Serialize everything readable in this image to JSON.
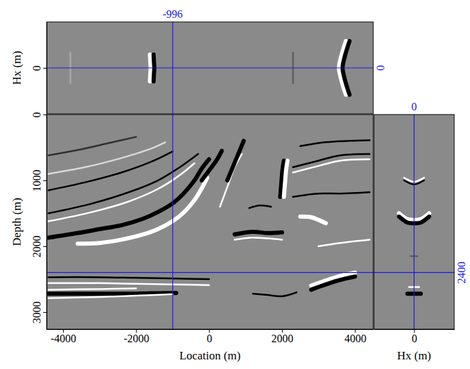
{
  "chart_data": [
    {
      "type": "line",
      "xlabel": "Location (m)",
      "ylabel": "Depth (m)",
      "xlim": [
        -4450,
        4500
      ],
      "ylim": [
        0,
        3260
      ],
      "xticks": [
        -4000,
        -2000,
        0,
        2000,
        4000
      ],
      "yticks": [
        0,
        1000,
        2000,
        3000
      ],
      "crosshair": {
        "x": -996,
        "y": 2400
      },
      "series": [
        {
          "color": "#ffffff",
          "line_style": "thick",
          "x": [
            -3600,
            -3000,
            -2400,
            -1800,
            -1400,
            -1000,
            -700,
            -400,
            -200,
            -50
          ],
          "values": [
            1960,
            1950,
            1900,
            1820,
            1740,
            1620,
            1490,
            1300,
            1120,
            960
          ]
        },
        {
          "color": "#000000",
          "line_style": "thick",
          "x": [
            -4400,
            -3600,
            -3000,
            -2400,
            -1800,
            -1400,
            -1000,
            -700,
            -400,
            -200,
            0
          ],
          "values": [
            1870,
            1800,
            1740,
            1680,
            1580,
            1480,
            1350,
            1200,
            1000,
            820,
            680
          ]
        },
        {
          "color": "#000000",
          "line_style": "thin",
          "x": [
            -4400,
            -3200,
            -2200,
            -1400,
            -800,
            -300
          ],
          "values": [
            1500,
            1350,
            1180,
            1000,
            800,
            600
          ]
        },
        {
          "color": "#ffffff",
          "line_style": "thin",
          "x": [
            -4400,
            -3200,
            -2200,
            -1400,
            -800,
            -400
          ],
          "values": [
            1620,
            1480,
            1320,
            1130,
            920,
            740
          ]
        },
        {
          "color": "#000000",
          "line_style": "thin",
          "x": [
            -4400,
            -3400,
            -2400,
            -1600,
            -1000
          ],
          "values": [
            1150,
            1030,
            880,
            720,
            560
          ]
        },
        {
          "color": "#d8d8d8",
          "line_style": "thin",
          "x": [
            -4400,
            -3400,
            -2400,
            -1600,
            -1200
          ],
          "values": [
            900,
            800,
            660,
            520,
            420
          ]
        },
        {
          "color": "#303030",
          "line_style": "thin",
          "x": [
            -4400,
            -3600,
            -2800,
            -2000
          ],
          "values": [
            620,
            540,
            440,
            340
          ]
        },
        {
          "color": "#000000",
          "line_style": "thin",
          "x": [
            -4400,
            -3000,
            -2000,
            -1000,
            0
          ],
          "values": [
            2470,
            2470,
            2480,
            2490,
            2500
          ]
        },
        {
          "color": "#ffffff",
          "line_style": "thin",
          "x": [
            -4400,
            -3000,
            -2000,
            -1000,
            0
          ],
          "values": [
            2560,
            2560,
            2570,
            2580,
            2590
          ]
        },
        {
          "color": "#000000",
          "line_style": "thick",
          "x": [
            -4400,
            -3000,
            -2000,
            -1200,
            -900
          ],
          "values": [
            2720,
            2720,
            2720,
            2710,
            2710
          ]
        },
        {
          "color": "#ffffff",
          "line_style": "thin",
          "x": [
            -4400,
            -3000,
            -2000,
            -1000
          ],
          "values": [
            2790,
            2770,
            2750,
            2730
          ]
        },
        {
          "color": "#ffffff",
          "line_style": "thin",
          "x": [
            -4400,
            -3000,
            -2000
          ],
          "values": [
            2660,
            2650,
            2640
          ]
        },
        {
          "color": "#000000",
          "line_style": "thick",
          "x": [
            -200,
            0,
            200,
            350
          ],
          "values": [
            1000,
            850,
            700,
            550
          ]
        },
        {
          "color": "#ffffff",
          "line_style": "thin",
          "x": [
            300,
            500,
            700,
            900
          ],
          "values": [
            1400,
            1100,
            800,
            600
          ]
        },
        {
          "color": "#000000",
          "line_style": "thick",
          "x": [
            500,
            650,
            800,
            950
          ],
          "values": [
            1000,
            800,
            600,
            400
          ]
        },
        {
          "color": "#000000",
          "line_style": "thick",
          "x": [
            1950,
            1980,
            2010,
            2050
          ],
          "values": [
            1250,
            1050,
            850,
            700
          ]
        },
        {
          "color": "#ffffff",
          "line_style": "thick",
          "x": [
            2050,
            2080,
            2110,
            2150
          ],
          "values": [
            1250,
            1050,
            850,
            700
          ]
        },
        {
          "color": "#000000",
          "line_style": "thick",
          "x": [
            700,
            1200,
            1600,
            2000
          ],
          "values": [
            1820,
            1780,
            1800,
            1790
          ]
        },
        {
          "color": "#ffffff",
          "line_style": "thin",
          "x": [
            700,
            1200,
            1600,
            2000
          ],
          "values": [
            1900,
            1870,
            1880,
            1900
          ]
        },
        {
          "color": "#000000",
          "line_style": "thin",
          "x": [
            1100,
            1400,
            1700
          ],
          "values": [
            1420,
            1380,
            1400
          ]
        },
        {
          "color": "#ffffff",
          "line_style": "thick",
          "x": [
            2800,
            3200,
            3600,
            4000
          ],
          "values": [
            2600,
            2520,
            2450,
            2400
          ]
        },
        {
          "color": "#000000",
          "line_style": "thick",
          "x": [
            2800,
            3200,
            3600,
            4000
          ],
          "values": [
            2660,
            2580,
            2510,
            2460
          ]
        },
        {
          "color": "#ffffff",
          "line_style": "thick",
          "x": [
            2500,
            2800,
            3000,
            3200
          ],
          "values": [
            1550,
            1560,
            1600,
            1650
          ]
        },
        {
          "color": "#000000",
          "line_style": "thin",
          "x": [
            2300,
            3000,
            3600,
            4400
          ],
          "values": [
            1250,
            1200,
            1200,
            1180
          ]
        },
        {
          "color": "#000000",
          "line_style": "thin",
          "x": [
            2300,
            3000,
            3600,
            4400
          ],
          "values": [
            800,
            700,
            620,
            600
          ]
        },
        {
          "color": "#ffffff",
          "line_style": "thin",
          "x": [
            2300,
            3000,
            3600,
            4400
          ],
          "values": [
            880,
            780,
            700,
            680
          ]
        },
        {
          "color": "#000000",
          "line_style": "thin",
          "x": [
            2500,
            3200,
            3800,
            4400
          ],
          "values": [
            480,
            420,
            400,
            390
          ]
        },
        {
          "color": "#ffffff",
          "line_style": "thin",
          "x": [
            3000,
            3600,
            4400
          ],
          "values": [
            2000,
            1950,
            1900
          ]
        },
        {
          "color": "#000000",
          "line_style": "thin",
          "x": [
            1200,
            1600,
            2000,
            2400
          ],
          "values": [
            2720,
            2740,
            2760,
            2700
          ]
        }
      ]
    },
    {
      "type": "line",
      "ylabel": "Hx (m)",
      "tick_labels": "y",
      "xlim": [
        -4450,
        4500
      ],
      "ylim": [
        -1200,
        1200
      ],
      "yticks": [
        0
      ],
      "crosshair": {
        "x": -996,
        "y": 0
      },
      "series": [
        {
          "color": "#ffffff",
          "line_style": "thick",
          "x": [
            -1620,
            -1610,
            -1600,
            -1610,
            -1620
          ],
          "values": [
            -350,
            -150,
            0,
            150,
            350
          ]
        },
        {
          "color": "#000000",
          "line_style": "thick",
          "x": [
            -1520,
            -1510,
            -1500,
            -1510,
            -1520
          ],
          "values": [
            -350,
            -150,
            0,
            150,
            350
          ]
        },
        {
          "color": "#ffffff",
          "line_style": "thick",
          "x": [
            3750,
            3620,
            3560,
            3620,
            3750
          ],
          "values": [
            -700,
            -300,
            0,
            300,
            700
          ]
        },
        {
          "color": "#000000",
          "line_style": "thick",
          "x": [
            3850,
            3720,
            3660,
            3720,
            3850
          ],
          "values": [
            -700,
            -300,
            0,
            300,
            700
          ]
        },
        {
          "color": "#a8a8a8",
          "line_style": "thin",
          "x": [
            -3800,
            -3800
          ],
          "values": [
            -400,
            400
          ]
        },
        {
          "color": "#606060",
          "line_style": "thin",
          "x": [
            2300,
            2300
          ],
          "values": [
            -400,
            400
          ]
        }
      ]
    },
    {
      "type": "line",
      "xlabel": "Hx (m)",
      "tick_labels": "x",
      "xlim": [
        -1200,
        1200
      ],
      "ylim": [
        0,
        3260
      ],
      "xticks": [
        0
      ],
      "crosshair": {
        "x": 0,
        "y": 2400
      },
      "series": [
        {
          "color": "#ffffff",
          "line_style": "thick",
          "x": [
            -450,
            -200,
            0,
            200,
            450
          ],
          "values": [
            1500,
            1590,
            1600,
            1590,
            1500
          ]
        },
        {
          "color": "#000000",
          "line_style": "thick",
          "x": [
            -450,
            -200,
            0,
            200,
            450
          ],
          "values": [
            1550,
            1640,
            1650,
            1640,
            1550
          ]
        },
        {
          "color": "#ffffff",
          "line_style": "thin",
          "x": [
            -300,
            -100,
            0,
            100,
            300
          ],
          "values": [
            960,
            1010,
            1020,
            1010,
            960
          ]
        },
        {
          "color": "#000000",
          "line_style": "thin",
          "x": [
            -300,
            -100,
            0,
            100,
            300
          ],
          "values": [
            1000,
            1050,
            1060,
            1050,
            1000
          ]
        },
        {
          "color": "#000000",
          "line_style": "thick",
          "x": [
            -200,
            0,
            200
          ],
          "values": [
            2720,
            2720,
            2720
          ]
        },
        {
          "color": "#ffffff",
          "line_style": "thin",
          "x": [
            -150,
            0,
            150
          ],
          "values": [
            2620,
            2620,
            2620
          ]
        },
        {
          "color": "#606060",
          "line_style": "thin",
          "x": [
            -100,
            0,
            100
          ],
          "values": [
            2150,
            2150,
            2150
          ]
        }
      ]
    }
  ]
}
